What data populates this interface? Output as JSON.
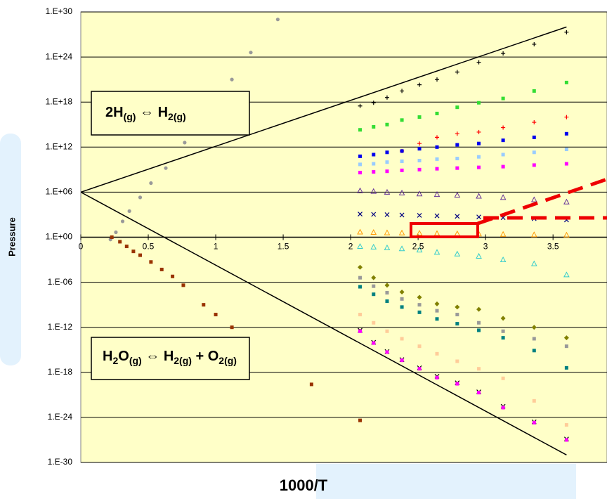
{
  "chart_data": {
    "type": "scatter",
    "x_label": "1000/T",
    "y_label": "Pressure",
    "xlim": [
      0,
      3.9
    ],
    "xticks": [
      0,
      0.5,
      1,
      1.5,
      2,
      2.5,
      3,
      3.5
    ],
    "ylim": [
      1e-30,
      1e+30
    ],
    "log_y": true,
    "grid": true,
    "yticks": [
      {
        "value": 1e-30,
        "label": "1.E-30"
      },
      {
        "value": 1e-24,
        "label": "1.E-24"
      },
      {
        "value": 1e-18,
        "label": "1.E-18"
      },
      {
        "value": 1e-12,
        "label": "1.E-12"
      },
      {
        "value": 1e-06,
        "label": "1.E-06"
      },
      {
        "value": 1,
        "label": "1.E+00"
      },
      {
        "value": 1000000.0,
        "label": "1.E+06"
      },
      {
        "value": 1000000000000.0,
        "label": "1.E+12"
      },
      {
        "value": 1e+18,
        "label": "1.E+18"
      },
      {
        "value": 1e+24,
        "label": "1.E+24"
      },
      {
        "value": 1e+30,
        "label": "1.E+30"
      }
    ],
    "annotations": [
      [
        {
          "text": "2H"
        },
        {
          "text": "(g)",
          "sub": true
        },
        {
          "text": " ⇔ H"
        },
        {
          "text": "2(g)",
          "sub": true
        }
      ],
      [
        {
          "text": "H"
        },
        {
          "text": "2",
          "sub": true
        },
        {
          "text": "O"
        },
        {
          "text": "(g)",
          "sub": true
        },
        {
          "text": " ⇔ H"
        },
        {
          "text": "2(g)",
          "sub": true
        },
        {
          "text": " + O"
        },
        {
          "text": "2(g)",
          "sub": true
        }
      ]
    ],
    "series": [
      {
        "color": "#000000",
        "style": "line",
        "x": [
          0,
          3.6
        ],
        "values": [
          1000000.0,
          1e+28
        ]
      },
      {
        "color": "#000000",
        "style": "line",
        "x": [
          0,
          3.6
        ],
        "values": [
          1000000.0,
          1e-29
        ]
      },
      {
        "color": "#999999",
        "style": "circle",
        "x": [
          0.22,
          0.26,
          0.31,
          0.36,
          0.44,
          0.52,
          0.63,
          0.77,
          0.96,
          1.12,
          1.26,
          1.46
        ],
        "values": [
          0.5,
          4.5,
          130,
          3000,
          200000.0,
          16000000.0,
          1600000000.0,
          4000000000000.0,
          3e+16,
          1e+21,
          4e+24,
          1e+29
        ]
      },
      {
        "color": "#993300",
        "style": "square",
        "x": [
          0.23,
          0.29,
          0.34,
          0.39,
          0.44,
          0.52,
          0.6,
          0.68,
          0.76,
          0.91,
          1.0,
          1.12,
          1.71,
          2.07
        ],
        "values": [
          1,
          0.25,
          0.06,
          0.013,
          0.004,
          0.0005,
          5e-05,
          6e-06,
          4e-07,
          1e-09,
          5e-11,
          1e-12,
          2.5e-20,
          4e-25
        ]
      },
      {
        "color": "#000000",
        "style": "plus",
        "x": [
          2.07,
          2.17,
          2.27,
          2.38,
          2.51,
          2.64,
          2.79,
          2.95,
          3.13,
          3.36,
          3.6
        ],
        "values": [
          3e+17,
          8e+17,
          4e+18,
          3e+19,
          2e+20,
          1e+21,
          1e+22,
          2e+23,
          3e+24,
          5e+25,
          2e+27
        ]
      },
      {
        "color": "#33dd33",
        "style": "square",
        "x": [
          2.07,
          2.17,
          2.27,
          2.38,
          2.51,
          2.64,
          2.79,
          2.95,
          3.13,
          3.36,
          3.6
        ],
        "values": [
          200000000000000.0,
          500000000000000.0,
          1000000000000000.0,
          4000000000000000.0,
          1e+16,
          3e+16,
          2e+17,
          8e+17,
          3e+18,
          3e+19,
          4e+20
        ]
      },
      {
        "color": "#ff0000",
        "style": "plus",
        "x": [
          2.38,
          2.51,
          2.64,
          2.79,
          2.95,
          3.13,
          3.36,
          3.6
        ],
        "values": [
          300000000000.0,
          3000000000000.0,
          20000000000000.0,
          60000000000000.0,
          100000000000000.0,
          400000000000000.0,
          2000000000000000.0,
          1e+16
        ]
      },
      {
        "color": "#0000ee",
        "style": "square",
        "x": [
          2.07,
          2.17,
          2.27,
          2.38,
          2.51,
          2.64,
          2.79,
          2.95,
          3.13,
          3.36,
          3.6
        ],
        "values": [
          60000000000.0,
          100000000000.0,
          200000000000.0,
          300000000000.0,
          600000000000.0,
          1000000000000.0,
          2000000000000.0,
          3000000000000.0,
          8000000000000.0,
          20000000000000.0,
          60000000000000.0
        ]
      },
      {
        "color": "#99ccff",
        "style": "square",
        "x": [
          2.07,
          2.17,
          2.27,
          2.38,
          2.51,
          2.64,
          2.79,
          2.95,
          3.13,
          3.36,
          3.6
        ],
        "values": [
          5000000000.0,
          6000000000.0,
          10000000000.0,
          13000000000.0,
          16000000000.0,
          25000000000.0,
          30000000000.0,
          50000000000.0,
          100000000000.0,
          200000000000.0,
          500000000000.0
        ]
      },
      {
        "color": "#ff00ff",
        "style": "square",
        "x": [
          2.07,
          2.17,
          2.27,
          2.38,
          2.51,
          2.64,
          2.79,
          2.95,
          3.13,
          3.36,
          3.6
        ],
        "values": [
          400000000.0,
          500000000.0,
          600000000.0,
          800000000.0,
          1000000000.0,
          1300000000.0,
          1600000000.0,
          2000000000.0,
          2500000000.0,
          4000000000.0,
          6000000000.0
        ]
      },
      {
        "color": "#663399",
        "style": "triangle",
        "x": [
          2.07,
          2.17,
          2.27,
          2.38,
          2.51,
          2.64,
          2.79,
          2.95,
          3.13,
          3.36,
          3.6
        ],
        "values": [
          1600000.0,
          1300000.0,
          1000000.0,
          800000.0,
          600000.0,
          500000.0,
          400000.0,
          300000.0,
          200000.0,
          100000.0,
          50000.0
        ]
      },
      {
        "color": "#000080",
        "style": "cross",
        "x": [
          2.07,
          2.17,
          2.27,
          2.38,
          2.51,
          2.64,
          2.79,
          2.95,
          3.13,
          3.36,
          3.6
        ],
        "values": [
          1200,
          1100,
          1000,
          900,
          800,
          700,
          600,
          500,
          400,
          300,
          200
        ]
      },
      {
        "color": "#ff9900",
        "style": "triangle",
        "x": [
          2.07,
          2.17,
          2.27,
          2.38,
          2.51,
          2.64,
          2.79,
          2.95,
          3.13,
          3.36,
          3.6
        ],
        "values": [
          5,
          4.5,
          4,
          3.8,
          3.5,
          3.2,
          3,
          2.8,
          2.5,
          2.2,
          2
        ]
      },
      {
        "color": "#33cccc",
        "style": "triangle",
        "x": [
          2.07,
          2.17,
          2.27,
          2.38,
          2.51,
          2.64,
          2.79,
          2.95,
          3.13,
          3.36,
          3.6
        ],
        "values": [
          0.06,
          0.05,
          0.04,
          0.03,
          0.02,
          0.01,
          0.006,
          0.003,
          0.001,
          0.0003,
          1e-05
        ]
      },
      {
        "color": "#808000",
        "style": "diamond",
        "x": [
          2.07,
          2.17,
          2.27,
          2.38,
          2.51,
          2.64,
          2.79,
          2.95,
          3.13,
          3.36,
          3.6
        ],
        "values": [
          0.0001,
          4e-06,
          4e-07,
          5e-08,
          1e-08,
          1.3e-09,
          5e-10,
          2.5e-10,
          1.6e-11,
          1e-12,
          4e-14
        ]
      },
      {
        "color": "#999999",
        "style": "square",
        "x": [
          2.07,
          2.17,
          2.27,
          2.38,
          2.51,
          2.64,
          2.79,
          2.95,
          3.13,
          3.36,
          3.6
        ],
        "values": [
          4e-06,
          3e-07,
          4e-08,
          6e-09,
          1e-09,
          1.6e-10,
          5e-11,
          4e-12,
          3e-13,
          3e-14,
          3e-15
        ]
      },
      {
        "color": "#008080",
        "style": "square",
        "x": [
          2.07,
          2.17,
          2.27,
          2.38,
          2.51,
          2.64,
          2.79,
          2.95,
          3.13,
          3.36,
          3.6
        ],
        "values": [
          2.5e-07,
          2.5e-08,
          3e-09,
          5e-10,
          1e-10,
          1.3e-11,
          3e-12,
          4e-13,
          4e-14,
          8e-16,
          4e-18
        ]
      },
      {
        "color": "#ffcc99",
        "style": "square",
        "x": [
          2.07,
          2.17,
          2.27,
          2.38,
          2.51,
          2.64,
          2.79,
          2.95,
          3.13,
          3.36,
          3.6
        ],
        "values": [
          5e-11,
          4e-12,
          3e-13,
          3e-14,
          3e-15,
          3e-16,
          3e-17,
          3e-18,
          1.6e-19,
          1.6e-22,
          1e-25
        ]
      },
      {
        "color": "#000000",
        "style": "cross",
        "x": [
          2.07,
          2.17,
          2.27,
          2.38,
          2.51,
          2.64,
          2.79,
          2.95,
          3.13,
          3.36,
          3.6
        ],
        "values": [
          4e-13,
          1e-14,
          6e-16,
          5e-17,
          4e-18,
          3e-19,
          4e-20,
          2.5e-21,
          3e-23,
          2.5e-25,
          1.3e-27
        ]
      },
      {
        "color": "#ff00ff",
        "style": "square",
        "x": [
          2.07,
          2.17,
          2.27,
          2.38,
          2.51,
          2.64,
          2.79,
          2.95,
          3.13,
          3.36,
          3.6
        ],
        "values": [
          3e-13,
          8e-15,
          5e-16,
          4e-17,
          3e-18,
          2e-19,
          3e-20,
          2e-21,
          2e-23,
          2e-25,
          1e-27
        ]
      }
    ]
  }
}
